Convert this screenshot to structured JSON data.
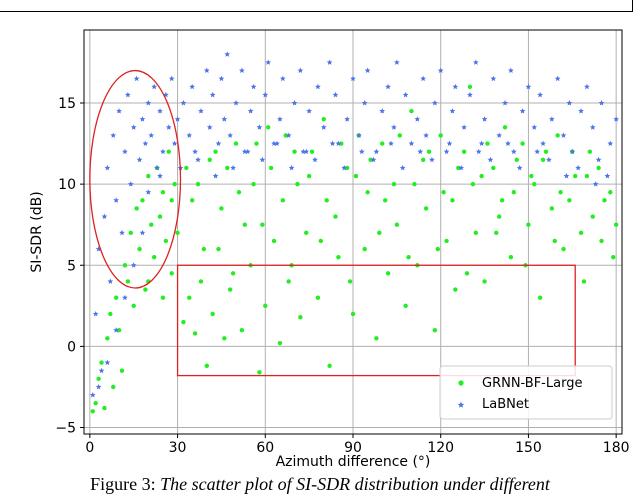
{
  "caption": {
    "prefix": "Figure 3: ",
    "text": "The scatter plot of SI-SDR distribution under different"
  },
  "chart_data": {
    "type": "scatter",
    "xlabel": "Azimuth difference (°)",
    "ylabel": "SI-SDR (dB)",
    "xlim": [
      -2,
      182
    ],
    "ylim": [
      -5.4,
      19.5
    ],
    "xticks": [
      0,
      30,
      60,
      90,
      120,
      150,
      180
    ],
    "yticks": [
      -5,
      0,
      5,
      10,
      15
    ],
    "grid": true,
    "legend_position": "bottom-right",
    "series": [
      {
        "name": "GRNN-BF-Large",
        "color": "#22ee22",
        "marker": "circle",
        "points": [
          [
            1,
            -4.0
          ],
          [
            2,
            -3.5
          ],
          [
            3,
            -2.0
          ],
          [
            4,
            -1.0
          ],
          [
            5,
            -3.8
          ],
          [
            6,
            0.5
          ],
          [
            7,
            2.0
          ],
          [
            8,
            -2.5
          ],
          [
            9,
            3.0
          ],
          [
            10,
            1.0
          ],
          [
            11,
            -1.5
          ],
          [
            12,
            5.0
          ],
          [
            13,
            4.0
          ],
          [
            14,
            7.0
          ],
          [
            15,
            2.5
          ],
          [
            16,
            8.5
          ],
          [
            17,
            6.0
          ],
          [
            18,
            9.0
          ],
          [
            19,
            3.5
          ],
          [
            20,
            10.5
          ],
          [
            21,
            7.5
          ],
          [
            22,
            5.5
          ],
          [
            23,
            11.0
          ],
          [
            24,
            8.0
          ],
          [
            25,
            9.5
          ],
          [
            26,
            6.5
          ],
          [
            27,
            12.0
          ],
          [
            28,
            4.5
          ],
          [
            29,
            10.0
          ],
          [
            30,
            7.0
          ],
          [
            32,
            1.5
          ],
          [
            34,
            3.0
          ],
          [
            35,
            9.0
          ],
          [
            36,
            0.8
          ],
          [
            38,
            4.0
          ],
          [
            40,
            -1.2
          ],
          [
            41,
            11.5
          ],
          [
            42,
            2.0
          ],
          [
            44,
            6.0
          ],
          [
            45,
            8.5
          ],
          [
            46,
            0.5
          ],
          [
            48,
            3.5
          ],
          [
            50,
            12.5
          ],
          [
            52,
            1.0
          ],
          [
            53,
            7.5
          ],
          [
            55,
            5.0
          ],
          [
            56,
            10.0
          ],
          [
            58,
            -1.6
          ],
          [
            60,
            2.5
          ],
          [
            61,
            13.5
          ],
          [
            63,
            6.5
          ],
          [
            65,
            0.2
          ],
          [
            66,
            9.0
          ],
          [
            68,
            4.0
          ],
          [
            70,
            12.0
          ],
          [
            72,
            1.8
          ],
          [
            74,
            7.0
          ],
          [
            75,
            10.5
          ],
          [
            78,
            3.0
          ],
          [
            80,
            14.0
          ],
          [
            82,
            -1.2
          ],
          [
            84,
            8.0
          ],
          [
            85,
            5.5
          ],
          [
            88,
            11.0
          ],
          [
            90,
            2.0
          ],
          [
            92,
            13.0
          ],
          [
            94,
            6.0
          ],
          [
            95,
            9.5
          ],
          [
            98,
            0.5
          ],
          [
            100,
            12.5
          ],
          [
            102,
            4.5
          ],
          [
            104,
            10.0
          ],
          [
            105,
            7.5
          ],
          [
            108,
            2.5
          ],
          [
            110,
            14.5
          ],
          [
            112,
            5.0
          ],
          [
            114,
            11.5
          ],
          [
            115,
            8.5
          ],
          [
            118,
            1.0
          ],
          [
            120,
            13.0
          ],
          [
            122,
            6.5
          ],
          [
            124,
            9.0
          ],
          [
            125,
            3.5
          ],
          [
            128,
            12.0
          ],
          [
            130,
            16.0
          ],
          [
            132,
            7.0
          ],
          [
            134,
            10.5
          ],
          [
            135,
            4.0
          ],
          [
            138,
            11.0
          ],
          [
            140,
            8.0
          ],
          [
            142,
            13.5
          ],
          [
            144,
            5.5
          ],
          [
            145,
            9.5
          ],
          [
            148,
            12.5
          ],
          [
            150,
            7.5
          ],
          [
            152,
            10.0
          ],
          [
            154,
            3.0
          ],
          [
            155,
            11.5
          ],
          [
            158,
            8.5
          ],
          [
            160,
            13.0
          ],
          [
            162,
            6.0
          ],
          [
            164,
            9.0
          ],
          [
            165,
            12.0
          ],
          [
            168,
            7.0
          ],
          [
            170,
            10.5
          ],
          [
            172,
            8.0
          ],
          [
            174,
            11.0
          ],
          [
            175,
            6.5
          ],
          [
            178,
            9.5
          ],
          [
            180,
            7.5
          ],
          [
            20,
            4.0
          ],
          [
            25,
            3.0
          ],
          [
            28,
            9.0
          ],
          [
            33,
            11.0
          ],
          [
            37,
            10.0
          ],
          [
            43,
            12.0
          ],
          [
            47,
            11.0
          ],
          [
            51,
            9.5
          ],
          [
            57,
            12.5
          ],
          [
            62,
            11.0
          ],
          [
            67,
            13.0
          ],
          [
            71,
            10.0
          ],
          [
            76,
            12.0
          ],
          [
            81,
            9.0
          ],
          [
            86,
            12.5
          ],
          [
            91,
            10.5
          ],
          [
            96,
            11.5
          ],
          [
            101,
            9.0
          ],
          [
            106,
            13.0
          ],
          [
            111,
            10.0
          ],
          [
            116,
            12.0
          ],
          [
            121,
            9.5
          ],
          [
            126,
            11.0
          ],
          [
            131,
            10.0
          ],
          [
            136,
            12.5
          ],
          [
            141,
            9.0
          ],
          [
            146,
            11.5
          ],
          [
            151,
            10.5
          ],
          [
            156,
            12.0
          ],
          [
            161,
            9.5
          ],
          [
            166,
            10.5
          ],
          [
            171,
            12.0
          ],
          [
            176,
            9.0
          ],
          [
            39,
            6.0
          ],
          [
            49,
            4.5
          ],
          [
            59,
            7.5
          ],
          [
            69,
            5.0
          ],
          [
            79,
            6.5
          ],
          [
            89,
            4.0
          ],
          [
            99,
            7.0
          ],
          [
            109,
            5.5
          ],
          [
            119,
            6.0
          ],
          [
            129,
            4.5
          ],
          [
            139,
            7.0
          ],
          [
            149,
            5.0
          ],
          [
            159,
            6.5
          ],
          [
            169,
            4.0
          ],
          [
            179,
            5.5
          ]
        ]
      },
      {
        "name": "LaBNet",
        "color": "#4a74e8",
        "marker": "star",
        "points": [
          [
            1,
            -3.0
          ],
          [
            2,
            2.0
          ],
          [
            3,
            6.0
          ],
          [
            4,
            -1.5
          ],
          [
            5,
            8.0
          ],
          [
            6,
            11.0
          ],
          [
            7,
            4.0
          ],
          [
            8,
            13.0
          ],
          [
            9,
            9.0
          ],
          [
            10,
            14.5
          ],
          [
            11,
            7.0
          ],
          [
            12,
            12.0
          ],
          [
            13,
            15.5
          ],
          [
            14,
            10.0
          ],
          [
            15,
            13.5
          ],
          [
            16,
            16.5
          ],
          [
            17,
            11.5
          ],
          [
            18,
            14.0
          ],
          [
            19,
            12.5
          ],
          [
            20,
            15.0
          ],
          [
            21,
            13.0
          ],
          [
            22,
            16.0
          ],
          [
            23,
            11.0
          ],
          [
            24,
            14.5
          ],
          [
            25,
            12.0
          ],
          [
            26,
            15.5
          ],
          [
            27,
            13.5
          ],
          [
            28,
            16.5
          ],
          [
            29,
            12.5
          ],
          [
            30,
            14.0
          ],
          [
            32,
            15.0
          ],
          [
            34,
            13.0
          ],
          [
            35,
            16.0
          ],
          [
            36,
            12.0
          ],
          [
            38,
            14.5
          ],
          [
            40,
            17.0
          ],
          [
            41,
            13.5
          ],
          [
            42,
            15.5
          ],
          [
            44,
            12.5
          ],
          [
            45,
            16.5
          ],
          [
            46,
            14.0
          ],
          [
            47,
            18.0
          ],
          [
            48,
            13.0
          ],
          [
            50,
            15.0
          ],
          [
            52,
            17.0
          ],
          [
            53,
            12.0
          ],
          [
            55,
            14.5
          ],
          [
            56,
            16.0
          ],
          [
            58,
            13.5
          ],
          [
            60,
            15.5
          ],
          [
            61,
            17.5
          ],
          [
            63,
            12.5
          ],
          [
            65,
            14.0
          ],
          [
            66,
            16.5
          ],
          [
            68,
            13.0
          ],
          [
            70,
            15.0
          ],
          [
            72,
            17.0
          ],
          [
            74,
            12.0
          ],
          [
            75,
            14.5
          ],
          [
            78,
            16.0
          ],
          [
            80,
            13.5
          ],
          [
            82,
            17.5
          ],
          [
            84,
            15.5
          ],
          [
            85,
            12.5
          ],
          [
            88,
            14.0
          ],
          [
            90,
            16.5
          ],
          [
            92,
            13.0
          ],
          [
            94,
            15.0
          ],
          [
            95,
            17.0
          ],
          [
            98,
            12.0
          ],
          [
            100,
            14.5
          ],
          [
            102,
            16.0
          ],
          [
            104,
            13.5
          ],
          [
            105,
            17.5
          ],
          [
            108,
            15.5
          ],
          [
            110,
            12.5
          ],
          [
            112,
            14.0
          ],
          [
            114,
            16.5
          ],
          [
            115,
            13.0
          ],
          [
            118,
            15.0
          ],
          [
            120,
            17.0
          ],
          [
            122,
            12.0
          ],
          [
            124,
            14.5
          ],
          [
            125,
            16.0
          ],
          [
            128,
            13.5
          ],
          [
            130,
            15.5
          ],
          [
            132,
            17.5
          ],
          [
            134,
            12.5
          ],
          [
            135,
            14.0
          ],
          [
            138,
            16.5
          ],
          [
            140,
            13.0
          ],
          [
            142,
            15.0
          ],
          [
            144,
            17.0
          ],
          [
            145,
            12.0
          ],
          [
            148,
            14.5
          ],
          [
            150,
            16.0
          ],
          [
            152,
            13.5
          ],
          [
            154,
            15.5
          ],
          [
            155,
            12.5
          ],
          [
            158,
            14.0
          ],
          [
            160,
            16.5
          ],
          [
            162,
            13.0
          ],
          [
            164,
            15.0
          ],
          [
            165,
            12.0
          ],
          [
            168,
            14.5
          ],
          [
            170,
            16.0
          ],
          [
            172,
            13.5
          ],
          [
            174,
            11.5
          ],
          [
            175,
            15.0
          ],
          [
            178,
            12.5
          ],
          [
            180,
            14.0
          ],
          [
            20,
            9.5
          ],
          [
            24,
            10.5
          ],
          [
            31,
            11.0
          ],
          [
            37,
            11.5
          ],
          [
            43,
            10.5
          ],
          [
            49,
            11.0
          ],
          [
            54,
            12.0
          ],
          [
            59,
            11.5
          ],
          [
            64,
            12.5
          ],
          [
            69,
            11.0
          ],
          [
            73,
            12.0
          ],
          [
            77,
            11.5
          ],
          [
            83,
            12.5
          ],
          [
            87,
            11.0
          ],
          [
            93,
            12.0
          ],
          [
            97,
            11.5
          ],
          [
            103,
            12.5
          ],
          [
            107,
            11.0
          ],
          [
            113,
            12.0
          ],
          [
            117,
            11.5
          ],
          [
            123,
            12.5
          ],
          [
            127,
            11.0
          ],
          [
            133,
            12.0
          ],
          [
            137,
            11.5
          ],
          [
            143,
            12.5
          ],
          [
            147,
            11.0
          ],
          [
            153,
            12.0
          ],
          [
            157,
            11.5
          ],
          [
            163,
            10.5
          ],
          [
            167,
            11.0
          ],
          [
            173,
            10.0
          ],
          [
            177,
            10.5
          ],
          [
            3,
            -2.5
          ],
          [
            6,
            -1.0
          ],
          [
            9,
            1.0
          ],
          [
            12,
            3.0
          ],
          [
            15,
            5.0
          ],
          [
            18,
            7.0
          ]
        ]
      }
    ],
    "annotations": [
      {
        "shape": "ellipse",
        "color": "#dd2222",
        "center": [
          15.5,
          10.3
        ],
        "radius": [
          15.5,
          6.7
        ]
      },
      {
        "shape": "rectangle",
        "color": "#dd2222",
        "x_range": [
          30,
          166
        ],
        "y_range": [
          -1.8,
          5.0
        ]
      }
    ]
  }
}
